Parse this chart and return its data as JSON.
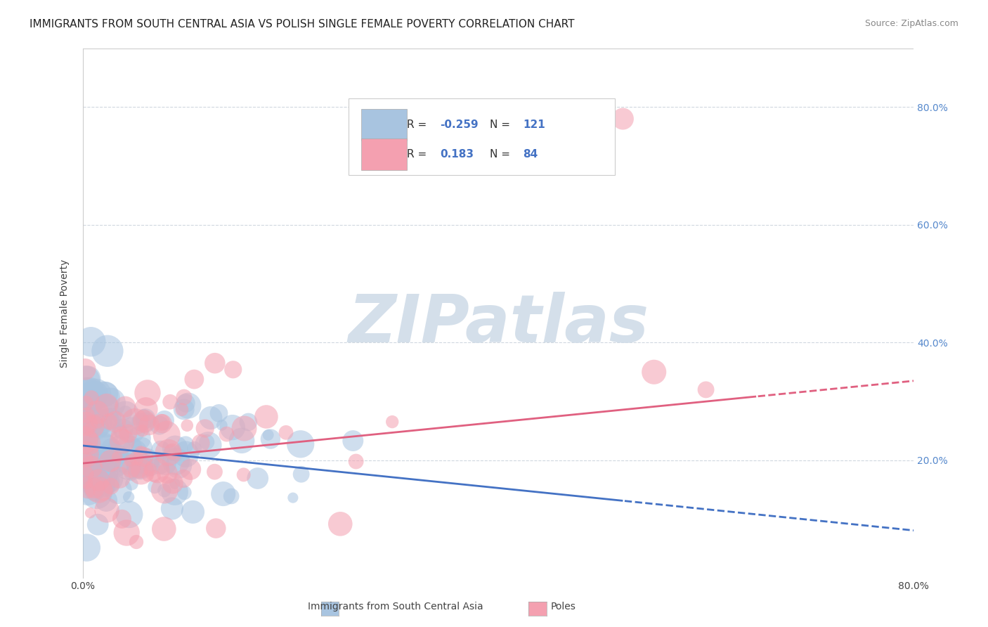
{
  "title": "IMMIGRANTS FROM SOUTH CENTRAL ASIA VS POLISH SINGLE FEMALE POVERTY CORRELATION CHART",
  "source": "Source: ZipAtlas.com",
  "ylabel": "Single Female Poverty",
  "ytick_labels": [
    "20.0%",
    "40.0%",
    "60.0%",
    "80.0%"
  ],
  "ytick_values": [
    0.2,
    0.4,
    0.6,
    0.8
  ],
  "xlim": [
    0.0,
    0.8
  ],
  "ylim": [
    0.0,
    0.9
  ],
  "blue_scatter_color": "#a8c4e0",
  "pink_scatter_color": "#f4a0b0",
  "blue_line_color": "#4472c4",
  "pink_line_color": "#e06080",
  "watermark_text": "ZIPatlas",
  "watermark_color": "#d0dce8",
  "background_color": "#ffffff",
  "grid_color": "#d0d8e0",
  "title_fontsize": 11,
  "R_blue": -0.259,
  "N_blue": 121,
  "R_pink": 0.183,
  "N_pink": 84,
  "blue_intercept": 0.225,
  "blue_slope": -0.18,
  "pink_intercept": 0.195,
  "pink_slope": 0.175,
  "blue_line_split": 0.52,
  "pink_line_split": 0.65
}
